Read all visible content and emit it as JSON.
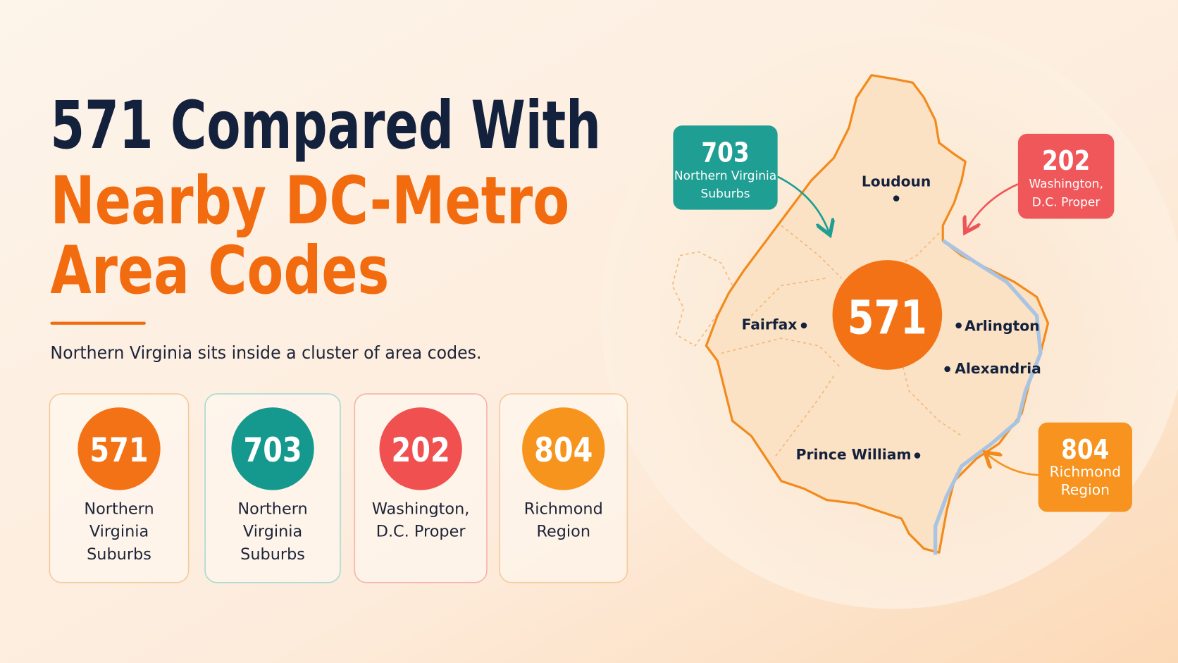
{
  "title": {
    "line1": "571 Compared With",
    "line2": "Nearby DC-Metro",
    "line3": "Area Codes"
  },
  "subtitle": "Northern Virginia sits inside a cluster of area codes.",
  "cards": [
    {
      "code": "571",
      "label_lines": [
        "Northern",
        "Virginia",
        "Suburbs"
      ]
    },
    {
      "code": "703",
      "label_lines": [
        "Northern",
        "Virginia",
        "Suburbs"
      ]
    },
    {
      "code": "202",
      "label_lines": [
        "Washington,",
        "D.C. Proper"
      ]
    },
    {
      "code": "804",
      "label_lines": [
        "Richmond",
        "Region"
      ]
    }
  ],
  "map": {
    "center_code": "571",
    "places": [
      "Loudoun",
      "Fairfax",
      "Arlington",
      "Alexandria",
      "Prince William"
    ],
    "callouts": [
      {
        "code": "703",
        "label_lines": [
          "Northern Virginia",
          "Suburbs"
        ]
      },
      {
        "code": "202",
        "label_lines": [
          "Washington,",
          "D.C. Proper"
        ]
      },
      {
        "code": "804",
        "label_lines": [
          "Richmond",
          "Region"
        ]
      }
    ]
  }
}
